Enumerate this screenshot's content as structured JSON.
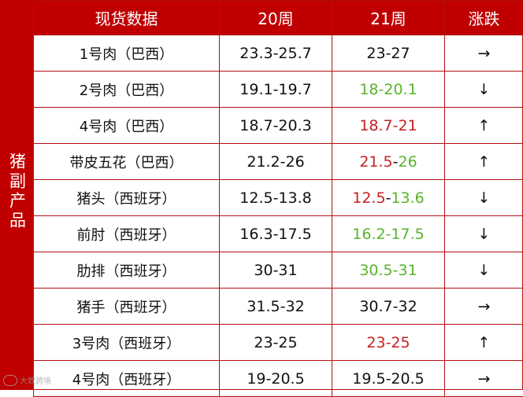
{
  "side_label": "猪副产品",
  "header": {
    "col1": "现货数据",
    "col2": "20周",
    "col3": "21周",
    "col4": "涨跌"
  },
  "colors": {
    "header_bg": "#c00000",
    "border": "#b50d11",
    "up": "#c62020",
    "down": "#59b32c",
    "flat": "#111111"
  },
  "rows": [
    {
      "name": "1号肉（巴西）",
      "w20": "23.3-25.7",
      "w21": [
        {
          "t": "23-27",
          "c": "black"
        }
      ],
      "arrow": "→",
      "trend": "flat"
    },
    {
      "name": "2号肉（巴西）",
      "w20": "19.1-19.7",
      "w21": [
        {
          "t": "18-20.1",
          "c": "green"
        }
      ],
      "arrow": "↓",
      "trend": "down"
    },
    {
      "name": "4号肉（巴西）",
      "w20": "18.7-20.3",
      "w21": [
        {
          "t": "18.7-21",
          "c": "red"
        }
      ],
      "arrow": "↑",
      "trend": "up"
    },
    {
      "name": "带皮五花（巴西）",
      "w20": "21.2-26",
      "w21": [
        {
          "t": "21.5",
          "c": "red"
        },
        {
          "t": "-",
          "c": "black"
        },
        {
          "t": "26",
          "c": "green"
        }
      ],
      "arrow": "↑",
      "trend": "up"
    },
    {
      "name": "猪头（西班牙）",
      "w20": "12.5-13.8",
      "w21": [
        {
          "t": "12.5",
          "c": "red"
        },
        {
          "t": "-",
          "c": "black"
        },
        {
          "t": "13.6",
          "c": "green"
        }
      ],
      "arrow": "↓",
      "trend": "down"
    },
    {
      "name": "前肘（西班牙）",
      "w20": "16.3-17.5",
      "w21": [
        {
          "t": "16.2-17.5",
          "c": "green"
        }
      ],
      "arrow": "↓",
      "trend": "down"
    },
    {
      "name": "肋排（西班牙）",
      "w20": "30-31",
      "w21": [
        {
          "t": "30.5-31",
          "c": "green"
        }
      ],
      "arrow": "↓",
      "trend": "down"
    },
    {
      "name": "猪手（西班牙）",
      "w20": "31.5-32",
      "w21": [
        {
          "t": "30.7-32",
          "c": "black"
        }
      ],
      "arrow": "→",
      "trend": "flat"
    },
    {
      "name": "3号肉（西班牙）",
      "w20": "23-25",
      "w21": [
        {
          "t": "23-25",
          "c": "red"
        }
      ],
      "arrow": "↑",
      "trend": "up"
    },
    {
      "name": "4号肉（西班牙）",
      "w20": "19-20.5",
      "w21": [
        {
          "t": "19.5-20.5",
          "c": "black"
        }
      ],
      "arrow": "→",
      "trend": "flat"
    }
  ],
  "watermark": "大数跨境"
}
